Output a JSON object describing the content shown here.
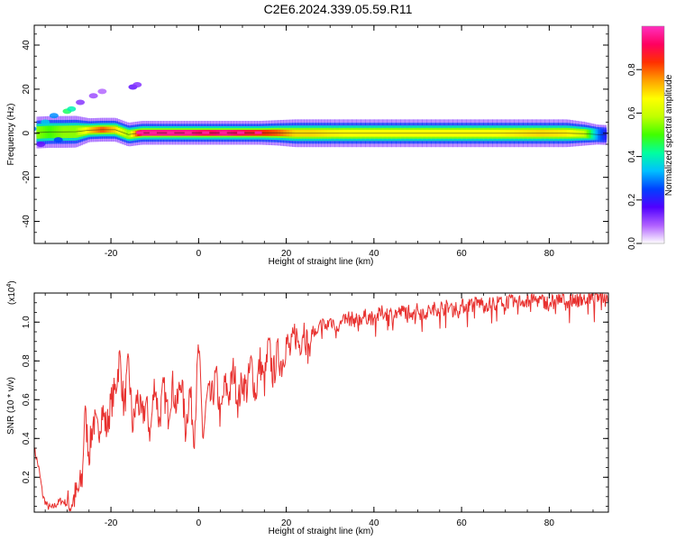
{
  "page": {
    "title": "C2E6.2024.339.05.59.R11"
  },
  "colors": {
    "snr_line": "#e8312f",
    "axis": "#000000",
    "background": "#ffffff"
  },
  "chart_data": [
    {
      "type": "heatmap",
      "title": "C2E6.2024.339.05.59.R11",
      "xlabel": "Height of straight line (km)",
      "ylabel": "Frequency (Hz)",
      "xlim": [
        -37.5,
        93.5
      ],
      "ylim": [
        -50,
        49
      ],
      "xticks": [
        -20,
        0,
        20,
        40,
        60,
        80
      ],
      "yticks": [
        -40,
        -20,
        0,
        20,
        40
      ],
      "colorbar": {
        "label": "Normalized spectral amplitude",
        "range": [
          0.0,
          1.0
        ],
        "ticks": [
          "0.0",
          "0.2",
          "0.4",
          "0.6",
          "0.8"
        ],
        "colormap": [
          "#ffffff",
          "#b060ff",
          "#5000ff",
          "#0040ff",
          "#00c0ff",
          "#00ffa0",
          "#40ff00",
          "#c0ff00",
          "#ffff00",
          "#ffa000",
          "#ff3000",
          "#ff0060",
          "#ff30c0"
        ]
      },
      "grid": false,
      "description_series": [
        {
          "name": "band",
          "points": [
            [
              -37,
              0.3,
              4,
              0.55
            ],
            [
              -34,
              0.6,
              4,
              0.5
            ],
            [
              -31,
              0.6,
              4,
              0.55
            ],
            [
              -28,
              0.7,
              4,
              0.55
            ],
            [
              -25,
              1.4,
              3,
              0.7
            ],
            [
              -22,
              1.6,
              3,
              0.8
            ],
            [
              -19,
              1.6,
              3,
              0.7
            ],
            [
              -16,
              -0.6,
              3,
              0.55
            ],
            [
              -13,
              0.2,
              3,
              0.95
            ],
            [
              -10,
              0.2,
              3,
              0.95
            ],
            [
              -6,
              0.2,
              3,
              0.95
            ],
            [
              -2,
              0.2,
              3,
              0.95
            ],
            [
              2,
              0.2,
              3,
              0.9
            ],
            [
              6,
              0.2,
              3,
              0.95
            ],
            [
              10,
              0.2,
              3,
              0.9
            ],
            [
              14,
              0.2,
              3,
              0.85
            ],
            [
              18,
              0.2,
              3.2,
              0.8
            ],
            [
              22,
              0.0,
              3.5,
              0.7
            ],
            [
              26,
              0.0,
              3.5,
              0.7
            ],
            [
              30,
              0.0,
              3.5,
              0.68
            ],
            [
              36,
              0.0,
              3.5,
              0.66
            ],
            [
              42,
              0.0,
              3.5,
              0.66
            ],
            [
              48,
              0.0,
              3.5,
              0.66
            ],
            [
              54,
              0.0,
              3.5,
              0.66
            ],
            [
              60,
              0.0,
              3.5,
              0.66
            ],
            [
              66,
              0.0,
              3.5,
              0.66
            ],
            [
              72,
              0.0,
              3.5,
              0.68
            ],
            [
              78,
              0.0,
              3.5,
              0.7
            ],
            [
              84,
              0.0,
              3.5,
              0.68
            ],
            [
              88,
              -0.2,
              3,
              0.6
            ],
            [
              91,
              -0.6,
              2.5,
              0.3
            ],
            [
              93,
              -0.8,
              2.5,
              0.2
            ]
          ]
        },
        {
          "name": "blobs",
          "points": [
            [
              -35,
              5,
              0.35
            ],
            [
              -33,
              8,
              0.3
            ],
            [
              -30,
              10,
              0.45
            ],
            [
              -29,
              11,
              0.4
            ],
            [
              -27,
              14,
              0.12
            ],
            [
              -24,
              17,
              0.1
            ],
            [
              -22,
              19,
              0.08
            ],
            [
              -15,
              21,
              0.15
            ],
            [
              -14,
              22,
              0.12
            ],
            [
              -32,
              -3,
              0.25
            ],
            [
              -36,
              -5,
              0.15
            ],
            [
              -38,
              2,
              0.3
            ]
          ]
        }
      ]
    },
    {
      "type": "line",
      "title": "",
      "xlabel": "Height of straight line (km)",
      "ylabel": "SNR (10 * v/v)",
      "y_multiplier": "(x10",
      "y_multiplier_exp": "4",
      "y_multiplier_close": ")",
      "xlim": [
        -37.5,
        93.5
      ],
      "ylim": [
        0.02,
        1.15
      ],
      "xticks": [
        -20,
        0,
        20,
        40,
        60,
        80
      ],
      "yticks": [
        0.2,
        0.4,
        0.6,
        0.8,
        1.0
      ],
      "ytick_labels": [
        "0.2",
        "0.4",
        "0.6",
        "0.8",
        "1.0"
      ],
      "grid": false,
      "series": [
        {
          "x": [
            -37.5,
            -36.5,
            -35.5,
            -34.5,
            -33.5,
            -32.5,
            -31.5,
            -30.5,
            -29.5,
            -28.5,
            -27.5,
            -26.5,
            -26.0,
            -25.0,
            -24.0,
            -23.0,
            -22.0,
            -21.0,
            -20.0,
            -19.0,
            -18.0,
            -17.0,
            -16.0,
            -15.0,
            -14.0,
            -13.0,
            -12.0,
            -11.0,
            -10.0,
            -9.0,
            -8.0,
            -7.0,
            -6.0,
            -5.0,
            -4.0,
            -3.0,
            -2.0,
            -1.0,
            0.0,
            1.0,
            2.0,
            3.0,
            4.0,
            5.0,
            6.0,
            7.0,
            8.0,
            9.0,
            10.0,
            11.0,
            12.0,
            13.0,
            14.0,
            15.0,
            16.0,
            17.0,
            18.0,
            19.0,
            20.0,
            21.0,
            22.0,
            23.0,
            24.0,
            25.0,
            26.0,
            27.0,
            28.0,
            29.0,
            30.0,
            32.0,
            34.0,
            36.0,
            38.0,
            40.0,
            42.0,
            44.0,
            46.0,
            48.0,
            50.0,
            52.0,
            54.0,
            56.0,
            58.0,
            60.0,
            62.0,
            64.0,
            66.0,
            68.0,
            70.0,
            72.0,
            74.0,
            76.0,
            78.0,
            80.0,
            82.0,
            84.0,
            86.0,
            88.0,
            90.0,
            92.0,
            93.5
          ],
          "y": [
            0.35,
            0.25,
            0.1,
            0.05,
            0.04,
            0.06,
            0.08,
            0.07,
            0.05,
            0.09,
            0.12,
            0.2,
            0.55,
            0.32,
            0.5,
            0.42,
            0.55,
            0.45,
            0.58,
            0.65,
            0.82,
            0.55,
            0.78,
            0.45,
            0.62,
            0.5,
            0.58,
            0.42,
            0.7,
            0.48,
            0.66,
            0.52,
            0.68,
            0.55,
            0.72,
            0.45,
            0.65,
            0.42,
            0.88,
            0.4,
            0.62,
            0.6,
            0.72,
            0.5,
            0.68,
            0.62,
            0.76,
            0.58,
            0.7,
            0.65,
            0.79,
            0.62,
            0.8,
            0.68,
            0.88,
            0.72,
            0.84,
            0.78,
            0.9,
            0.84,
            0.95,
            0.88,
            0.98,
            0.86,
            0.96,
            0.92,
            1.0,
            0.97,
            1.01,
            0.98,
            1.02,
            1.01,
            1.03,
            1.02,
            1.05,
            1.04,
            1.05,
            1.06,
            1.06,
            1.05,
            1.07,
            1.08,
            1.07,
            1.08,
            1.09,
            1.1,
            1.09,
            1.1,
            1.11,
            1.1,
            1.11,
            1.12,
            1.11,
            1.1,
            1.12,
            1.11,
            1.12,
            1.12,
            1.13,
            1.14,
            1.12
          ]
        }
      ]
    }
  ]
}
